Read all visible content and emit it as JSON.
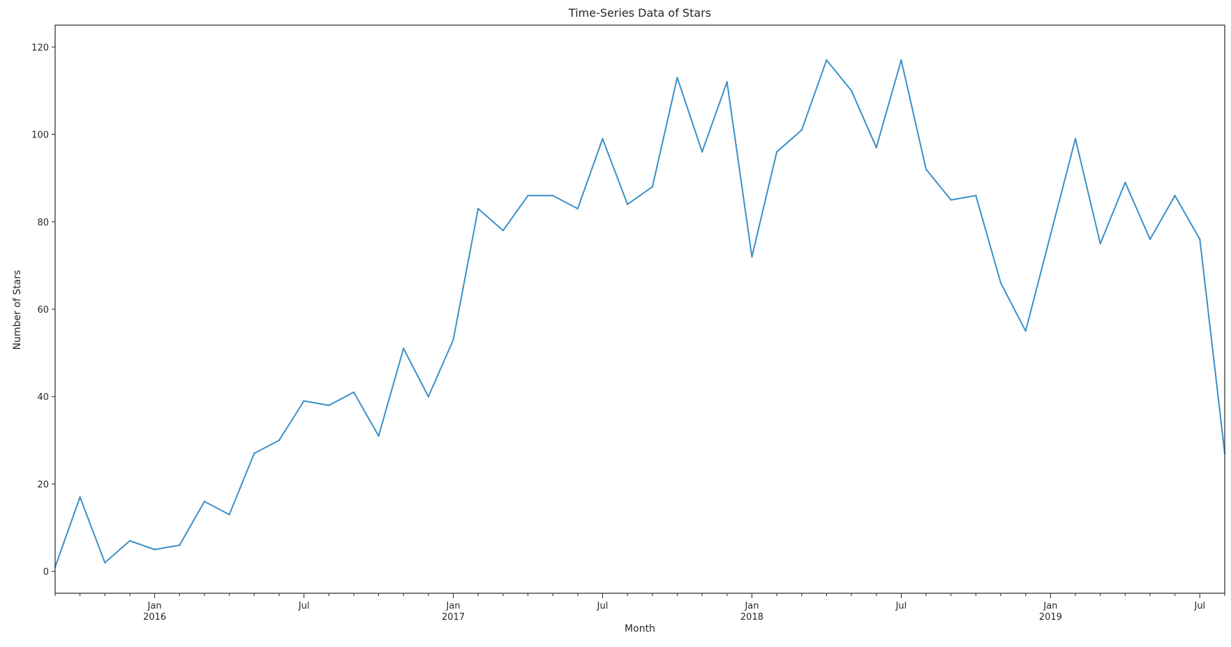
{
  "chart_data": {
    "type": "line",
    "title": "Time-Series Data of Stars",
    "xlabel": "Month",
    "ylabel": "Number of Stars",
    "ylim": [
      -5,
      125
    ],
    "xlim": [
      "2015-09",
      "2019-08"
    ],
    "yticks": [
      0,
      20,
      40,
      60,
      80,
      100,
      120
    ],
    "xticks": [
      {
        "date": "2016-01",
        "label": "Jan",
        "year": "2016"
      },
      {
        "date": "2016-07",
        "label": "Jul",
        "year": ""
      },
      {
        "date": "2017-01",
        "label": "Jan",
        "year": "2017"
      },
      {
        "date": "2017-07",
        "label": "Jul",
        "year": ""
      },
      {
        "date": "2018-01",
        "label": "Jan",
        "year": "2018"
      },
      {
        "date": "2018-07",
        "label": "Jul",
        "year": ""
      },
      {
        "date": "2019-01",
        "label": "Jan",
        "year": "2019"
      },
      {
        "date": "2019-07",
        "label": "Jul",
        "year": ""
      }
    ],
    "grid": false,
    "legend": "none",
    "color": "#3a8fc8",
    "x": [
      "2015-09",
      "2015-10",
      "2015-11",
      "2015-12",
      "2016-01",
      "2016-02",
      "2016-03",
      "2016-04",
      "2016-05",
      "2016-06",
      "2016-07",
      "2016-08",
      "2016-09",
      "2016-10",
      "2016-11",
      "2016-12",
      "2017-01",
      "2017-02",
      "2017-03",
      "2017-04",
      "2017-05",
      "2017-06",
      "2017-07",
      "2017-08",
      "2017-09",
      "2017-10",
      "2017-11",
      "2017-12",
      "2018-01",
      "2018-02",
      "2018-03",
      "2018-04",
      "2018-05",
      "2018-06",
      "2018-07",
      "2018-08",
      "2018-09",
      "2018-10",
      "2018-11",
      "2018-12",
      "2019-01",
      "2019-02",
      "2019-03",
      "2019-04",
      "2019-05",
      "2019-06",
      "2019-07",
      "2019-08"
    ],
    "values": [
      1,
      17,
      2,
      7,
      5,
      6,
      16,
      13,
      27,
      30,
      39,
      38,
      41,
      31,
      51,
      40,
      53,
      83,
      78,
      86,
      86,
      83,
      99,
      84,
      88,
      113,
      96,
      112,
      72,
      96,
      101,
      117,
      110,
      97,
      117,
      92,
      85,
      86,
      66,
      55,
      77,
      99,
      75,
      89,
      76,
      86,
      76,
      27
    ]
  }
}
